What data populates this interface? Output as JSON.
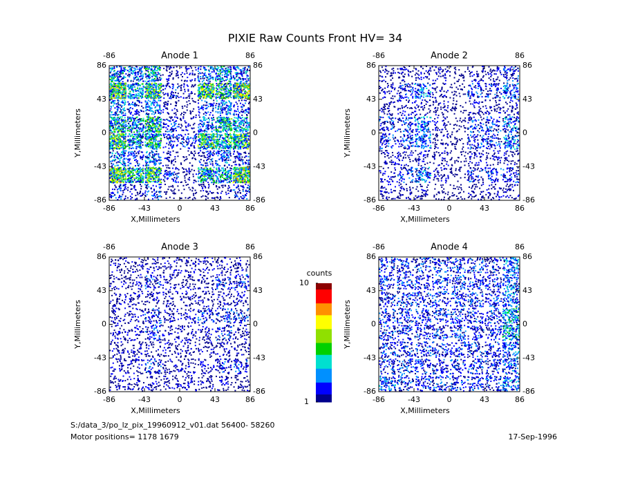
{
  "title": "PIXIE Raw Counts Front HV= 34",
  "footer": {
    "file": "S:/data_3/po_lz_pix_19960912_v01.dat   56400- 58260",
    "motor": "Motor positions= 1178 1679",
    "date": "17-Sep-1996"
  },
  "colorbar": {
    "label": "counts",
    "range": [
      1,
      10
    ],
    "ticks": [
      1,
      10
    ],
    "colors": [
      "#00008c",
      "#0000ff",
      "#0090ff",
      "#00e0d0",
      "#00d000",
      "#90e000",
      "#ffff00",
      "#ff9000",
      "#ff0000",
      "#8c0000"
    ]
  },
  "chart_data": [
    {
      "type": "heatmap",
      "title": "Anode 1",
      "xlabel": "X,Millimeters",
      "ylabel": "Y,Millimeters",
      "xlim": [
        -86,
        86
      ],
      "ylim": [
        -86,
        86
      ],
      "xticks": [
        -86,
        -43,
        0,
        43,
        86
      ],
      "yticks": [
        -86,
        -43,
        0,
        43,
        86
      ],
      "xbins": [
        -86,
        -64.5,
        -43,
        -21.5,
        0,
        21.5,
        43,
        64.5,
        86
      ],
      "ybins": [
        86,
        64.5,
        43,
        21.5,
        0,
        -21.5,
        -43,
        -64.5,
        -86
      ],
      "values": [
        [
          5,
          4,
          5,
          2,
          2,
          4,
          5,
          4
        ],
        [
          8,
          5,
          7,
          3,
          2,
          7,
          6,
          8
        ],
        [
          4,
          3,
          4,
          2,
          1,
          3,
          4,
          3
        ],
        [
          6,
          5,
          6,
          3,
          2,
          4,
          6,
          5
        ],
        [
          7,
          5,
          6,
          3,
          3,
          7,
          6,
          7
        ],
        [
          4,
          3,
          4,
          2,
          1,
          3,
          4,
          3
        ],
        [
          8,
          6,
          7,
          3,
          2,
          6,
          5,
          8
        ],
        [
          3,
          2,
          3,
          1,
          1,
          2,
          2,
          3
        ]
      ]
    },
    {
      "type": "heatmap",
      "title": "Anode 2",
      "xlabel": "X,Millimeters",
      "ylabel": "Y,Millimeters",
      "xlim": [
        -86,
        86
      ],
      "ylim": [
        -86,
        86
      ],
      "xticks": [
        -86,
        -43,
        0,
        43,
        86
      ],
      "yticks": [
        -86,
        -43,
        0,
        43,
        86
      ],
      "xbins": [
        -86,
        -64.5,
        -43,
        -21.5,
        0,
        21.5,
        43,
        64.5,
        86
      ],
      "ybins": [
        86,
        64.5,
        43,
        21.5,
        0,
        -21.5,
        -43,
        -64.5,
        -86
      ],
      "values": [
        [
          2,
          2,
          2,
          2,
          1,
          2,
          2,
          3
        ],
        [
          2,
          3,
          4,
          2,
          1,
          3,
          3,
          4
        ],
        [
          2,
          2,
          2,
          2,
          1,
          2,
          2,
          2
        ],
        [
          3,
          3,
          4,
          2,
          1,
          3,
          3,
          4
        ],
        [
          3,
          3,
          4,
          2,
          1,
          3,
          3,
          4
        ],
        [
          2,
          2,
          2,
          2,
          1,
          2,
          2,
          2
        ],
        [
          2,
          3,
          4,
          2,
          1,
          3,
          3,
          3
        ],
        [
          2,
          2,
          2,
          1,
          1,
          2,
          2,
          2
        ]
      ]
    },
    {
      "type": "heatmap",
      "title": "Anode 3",
      "xlabel": "X,Millimeters",
      "ylabel": "Y,Millimeters",
      "xlim": [
        -86,
        86
      ],
      "ylim": [
        -86,
        86
      ],
      "xticks": [
        -86,
        -43,
        0,
        43,
        86
      ],
      "yticks": [
        -86,
        -43,
        0,
        43,
        86
      ],
      "xbins": [
        -86,
        -64.5,
        -43,
        -21.5,
        0,
        21.5,
        43,
        64.5,
        86
      ],
      "ybins": [
        86,
        64.5,
        43,
        21.5,
        0,
        -21.5,
        -43,
        -64.5,
        -86
      ],
      "values": [
        [
          2,
          2,
          2,
          2,
          2,
          2,
          2,
          2
        ],
        [
          2,
          2,
          3,
          2,
          2,
          2,
          3,
          3
        ],
        [
          2,
          2,
          2,
          2,
          2,
          2,
          2,
          2
        ],
        [
          2,
          2,
          3,
          2,
          2,
          3,
          3,
          3
        ],
        [
          2,
          2,
          3,
          2,
          2,
          2,
          3,
          2
        ],
        [
          2,
          2,
          2,
          2,
          2,
          2,
          2,
          2
        ],
        [
          2,
          2,
          3,
          2,
          2,
          2,
          3,
          3
        ],
        [
          2,
          2,
          2,
          2,
          2,
          2,
          2,
          2
        ]
      ]
    },
    {
      "type": "heatmap",
      "title": "Anode 4",
      "xlabel": "X,Millimeters",
      "ylabel": "Y,Millimeters",
      "xlim": [
        -86,
        86
      ],
      "ylim": [
        -86,
        86
      ],
      "xticks": [
        -86,
        -43,
        0,
        43,
        86
      ],
      "yticks": [
        -86,
        -43,
        0,
        43,
        86
      ],
      "xbins": [
        -86,
        -64.5,
        -43,
        -21.5,
        0,
        21.5,
        43,
        64.5,
        86
      ],
      "ybins": [
        86,
        64.5,
        43,
        21.5,
        0,
        -21.5,
        -43,
        -64.5,
        -86
      ],
      "values": [
        [
          3,
          3,
          3,
          3,
          3,
          3,
          3,
          4
        ],
        [
          3,
          3,
          3,
          3,
          3,
          3,
          3,
          4
        ],
        [
          3,
          3,
          3,
          3,
          3,
          3,
          3,
          4
        ],
        [
          3,
          3,
          3,
          3,
          3,
          3,
          3,
          5
        ],
        [
          3,
          3,
          3,
          3,
          3,
          3,
          3,
          5
        ],
        [
          3,
          3,
          3,
          3,
          3,
          3,
          3,
          4
        ],
        [
          3,
          3,
          3,
          3,
          3,
          3,
          3,
          4
        ],
        [
          4,
          3,
          3,
          3,
          3,
          3,
          3,
          4
        ]
      ]
    }
  ]
}
